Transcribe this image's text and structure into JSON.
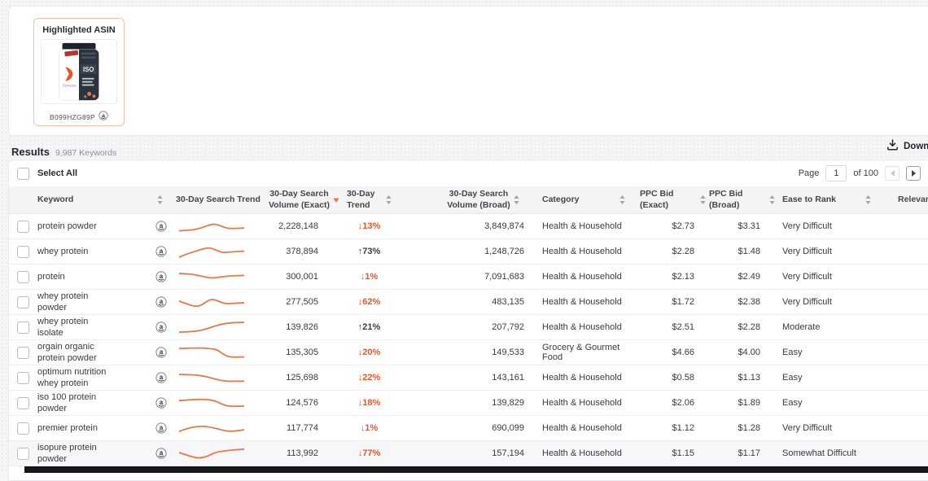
{
  "highlighted_asin": {
    "title": "Highlighted ASIN",
    "asin": "B099HZG89P"
  },
  "results_bar": {
    "title": "Results",
    "count": "9,987 Keywords",
    "download_label": "Download"
  },
  "controls": {
    "select_all_label": "Select All",
    "page_label": "Page",
    "page_value": "1",
    "page_total_label": "of 100"
  },
  "table": {
    "columns": [
      {
        "key": "keyword",
        "label": "Keyword",
        "sort": "both"
      },
      {
        "key": "spark",
        "label": "30-Day Search Trend",
        "sort": "none"
      },
      {
        "key": "volume_exact",
        "label": "30-Day Search\nVolume (Exact)",
        "sort": "desc"
      },
      {
        "key": "trend",
        "label": "30-Day Trend",
        "sort": "both"
      },
      {
        "key": "volume_broad",
        "label": "30-Day Search\nVolume (Broad)",
        "sort": "both"
      },
      {
        "key": "category",
        "label": "Category",
        "sort": "both"
      },
      {
        "key": "ppc_exact",
        "label": "PPC Bid (Exact)",
        "sort": "both"
      },
      {
        "key": "ppc_broad",
        "label": "PPC Bid (Broad)",
        "sort": "both"
      },
      {
        "key": "ease",
        "label": "Ease to Rank",
        "sort": "both"
      },
      {
        "key": "relevancy",
        "label": "Relevancy Score",
        "sort": "both"
      }
    ],
    "rows": [
      {
        "keyword": "protein powder",
        "volume_exact": "2,228,148",
        "trend": "13%",
        "trend_dir": "down",
        "volume_broad": "3,849,874",
        "category": "Health & Household",
        "ppc_exact": "$2.73",
        "ppc_broad": "$3.31",
        "ease": "Very Difficult",
        "spark": [
          [
            0,
            78
          ],
          [
            20,
            74
          ],
          [
            35,
            60
          ],
          [
            50,
            36
          ],
          [
            60,
            40
          ],
          [
            72,
            62
          ],
          [
            85,
            64
          ],
          [
            100,
            60
          ]
        ]
      },
      {
        "keyword": "whey protein",
        "volume_exact": "378,894",
        "trend": "73%",
        "trend_dir": "up",
        "volume_broad": "1,248,726",
        "category": "Health & Household",
        "ppc_exact": "$2.28",
        "ppc_broad": "$1.48",
        "ease": "Very Difficult",
        "spark": [
          [
            0,
            85
          ],
          [
            14,
            62
          ],
          [
            28,
            45
          ],
          [
            40,
            30
          ],
          [
            48,
            27
          ],
          [
            57,
            42
          ],
          [
            67,
            58
          ],
          [
            80,
            52
          ],
          [
            100,
            48
          ]
        ]
      },
      {
        "keyword": "protein",
        "volume_exact": "300,001",
        "trend": "1%",
        "trend_dir": "down",
        "volume_broad": "7,091,683",
        "category": "Health & Household",
        "ppc_exact": "$2.13",
        "ppc_broad": "$2.49",
        "ease": "Very Difficult",
        "spark": [
          [
            0,
            30
          ],
          [
            18,
            33
          ],
          [
            34,
            46
          ],
          [
            50,
            60
          ],
          [
            66,
            50
          ],
          [
            82,
            44
          ],
          [
            100,
            42
          ]
        ]
      },
      {
        "keyword": "whey protein powder",
        "volume_exact": "277,505",
        "trend": "62%",
        "trend_dir": "down",
        "volume_broad": "483,135",
        "category": "Health & Household",
        "ppc_exact": "$1.72",
        "ppc_broad": "$2.38",
        "ease": "Very Difficult",
        "spark": [
          [
            0,
            45
          ],
          [
            12,
            62
          ],
          [
            24,
            78
          ],
          [
            34,
            72
          ],
          [
            44,
            42
          ],
          [
            52,
            32
          ],
          [
            62,
            48
          ],
          [
            72,
            62
          ],
          [
            84,
            58
          ],
          [
            100,
            55
          ]
        ]
      },
      {
        "keyword": "whey protein isolate",
        "volume_exact": "139,826",
        "trend": "21%",
        "trend_dir": "up",
        "volume_broad": "207,792",
        "category": "Health & Household",
        "ppc_exact": "$2.51",
        "ppc_broad": "$2.28",
        "ease": "Moderate",
        "spark": [
          [
            0,
            80
          ],
          [
            18,
            78
          ],
          [
            34,
            70
          ],
          [
            50,
            50
          ],
          [
            66,
            30
          ],
          [
            82,
            22
          ],
          [
            100,
            20
          ]
        ]
      },
      {
        "keyword": "orgain organic protein powder",
        "volume_exact": "135,305",
        "trend": "20%",
        "trend_dir": "down",
        "volume_broad": "149,533",
        "category": "Grocery & Gourmet Food",
        "ppc_exact": "$4.66",
        "ppc_broad": "$4.00",
        "ease": "Easy",
        "spark": [
          [
            0,
            26
          ],
          [
            25,
            22
          ],
          [
            45,
            25
          ],
          [
            58,
            32
          ],
          [
            68,
            62
          ],
          [
            78,
            80
          ],
          [
            100,
            78
          ]
        ]
      },
      {
        "keyword": "optimum nutrition whey protein",
        "volume_exact": "125,698",
        "trend": "22%",
        "trend_dir": "down",
        "volume_broad": "143,161",
        "category": "Health & Household",
        "ppc_exact": "$0.58",
        "ppc_broad": "$1.13",
        "ease": "Easy",
        "spark": [
          [
            0,
            30
          ],
          [
            22,
            32
          ],
          [
            38,
            40
          ],
          [
            52,
            55
          ],
          [
            64,
            68
          ],
          [
            78,
            73
          ],
          [
            100,
            71
          ]
        ]
      },
      {
        "keyword": "iso 100 protein powder",
        "volume_exact": "124,576",
        "trend": "18%",
        "trend_dir": "down",
        "volume_broad": "139,829",
        "category": "Health & Household",
        "ppc_exact": "$2.06",
        "ppc_broad": "$1.89",
        "ease": "Easy",
        "spark": [
          [
            0,
            36
          ],
          [
            20,
            30
          ],
          [
            40,
            28
          ],
          [
            54,
            35
          ],
          [
            66,
            58
          ],
          [
            76,
            72
          ],
          [
            100,
            70
          ]
        ]
      },
      {
        "keyword": "premier protein",
        "volume_exact": "117,774",
        "trend": "1%",
        "trend_dir": "down",
        "volume_broad": "690,099",
        "category": "Health & Household",
        "ppc_exact": "$1.12",
        "ppc_broad": "$1.28",
        "ease": "Very Difficult",
        "spark": [
          [
            0,
            70
          ],
          [
            14,
            50
          ],
          [
            30,
            38
          ],
          [
            45,
            41
          ],
          [
            60,
            55
          ],
          [
            74,
            70
          ],
          [
            88,
            68
          ],
          [
            100,
            60
          ]
        ]
      },
      {
        "keyword": "isopure protein powder",
        "volume_exact": "113,992",
        "trend": "77%",
        "trend_dir": "down",
        "volume_broad": "157,194",
        "category": "Health & Household",
        "ppc_exact": "$1.15",
        "ppc_broad": "$1.17",
        "ease": "Somewhat Difficult",
        "spark": [
          [
            0,
            45
          ],
          [
            14,
            64
          ],
          [
            28,
            80
          ],
          [
            42,
            72
          ],
          [
            54,
            46
          ],
          [
            66,
            36
          ],
          [
            82,
            30
          ],
          [
            100,
            24
          ]
        ]
      }
    ]
  },
  "colors": {
    "accent_orange": "#E8794B",
    "trend_down": "#E2582B",
    "trend_up": "#3C3C43",
    "sort_active": "#E8794B",
    "card_border": "#F3C2A2",
    "dark_bar": "#16161D"
  }
}
